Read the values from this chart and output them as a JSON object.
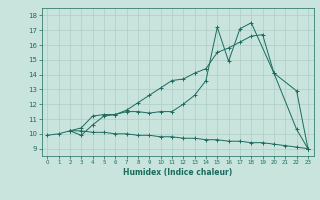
{
  "xlabel": "Humidex (Indice chaleur)",
  "xlim": [
    -0.5,
    23.5
  ],
  "ylim": [
    8.5,
    18.5
  ],
  "xticks": [
    0,
    1,
    2,
    3,
    4,
    5,
    6,
    7,
    8,
    9,
    10,
    11,
    12,
    13,
    14,
    15,
    16,
    17,
    18,
    19,
    20,
    21,
    22,
    23
  ],
  "yticks": [
    9,
    10,
    11,
    12,
    13,
    14,
    15,
    16,
    17,
    18
  ],
  "bg_color": "#c8e4dc",
  "line_color": "#1a6b5e",
  "grid_color": "#a8c8c0",
  "line1_x": [
    2,
    3,
    4,
    5,
    6,
    7,
    8,
    9,
    10,
    11,
    12,
    13,
    14,
    15,
    16,
    17,
    18,
    20,
    22,
    23
  ],
  "line1_y": [
    10.2,
    9.9,
    10.6,
    11.2,
    11.3,
    11.5,
    11.5,
    11.4,
    11.5,
    11.5,
    12.0,
    12.6,
    13.6,
    17.2,
    14.9,
    17.1,
    17.5,
    14.1,
    10.3,
    9.0
  ],
  "line2_x": [
    2,
    3,
    4,
    5,
    6,
    7,
    8,
    9,
    10,
    11,
    12,
    13,
    14,
    15,
    16,
    17,
    18,
    19,
    20,
    22,
    23
  ],
  "line2_y": [
    10.2,
    10.4,
    11.2,
    11.3,
    11.3,
    11.6,
    12.1,
    12.6,
    13.1,
    13.6,
    13.7,
    14.1,
    14.4,
    15.5,
    15.8,
    16.2,
    16.6,
    16.7,
    14.1,
    12.9,
    9.0
  ],
  "line3_x": [
    0,
    1,
    2,
    3,
    4,
    5,
    6,
    7,
    8,
    9,
    10,
    11,
    12,
    13,
    14,
    15,
    16,
    17,
    18,
    19,
    20,
    21,
    22,
    23
  ],
  "line3_y": [
    9.9,
    10.0,
    10.2,
    10.2,
    10.1,
    10.1,
    10.0,
    10.0,
    9.9,
    9.9,
    9.8,
    9.8,
    9.7,
    9.7,
    9.6,
    9.6,
    9.5,
    9.5,
    9.4,
    9.4,
    9.3,
    9.2,
    9.1,
    9.0
  ]
}
